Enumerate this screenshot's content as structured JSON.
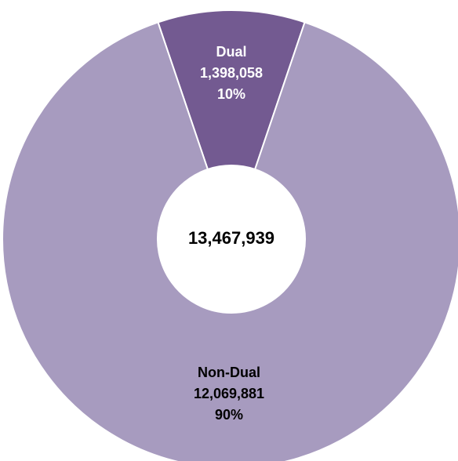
{
  "chart_data": {
    "type": "pie",
    "variant": "donut",
    "total_label": "13,467,939",
    "slices": [
      {
        "name": "Dual",
        "value": 1398058,
        "value_label": "1,398,058",
        "percent_label": "10%",
        "color": "#735a91",
        "label_color": "#ffffff"
      },
      {
        "name": "Non-Dual",
        "value": 12069881,
        "value_label": "12,069,881",
        "percent_label": "90%",
        "color": "#a79bbf",
        "label_color": "#000000"
      }
    ],
    "legend": "none"
  }
}
